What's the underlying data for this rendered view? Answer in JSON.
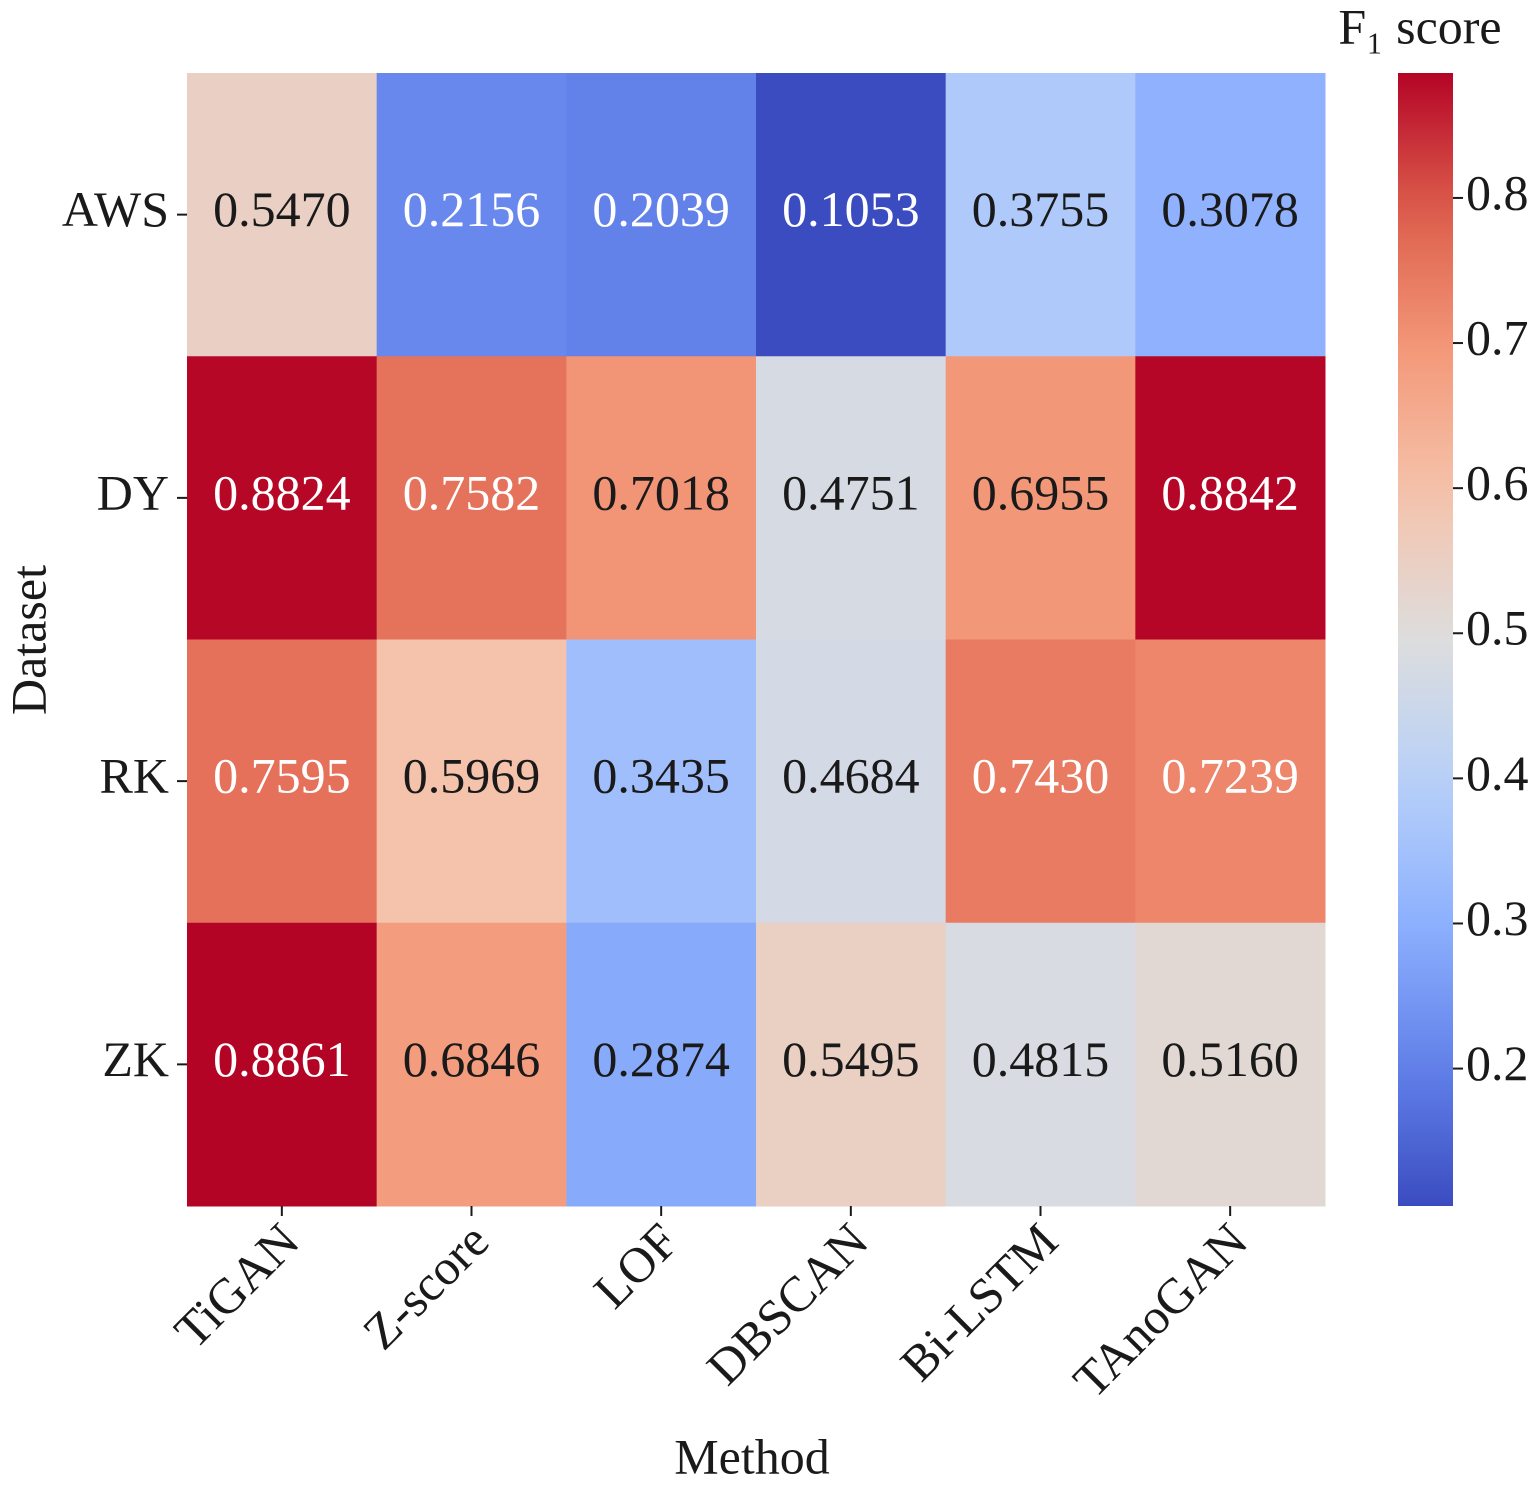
{
  "chart_data": {
    "type": "heatmap",
    "x_label": "Method",
    "y_label": "Dataset",
    "colorbar_label": "F₁ score",
    "x_categories": [
      "TiGAN",
      "Z-score",
      "LOF",
      "DBSCAN",
      "Bi-LSTM",
      "TAnoGAN"
    ],
    "y_categories": [
      "AWS",
      "DY",
      "RK",
      "ZK"
    ],
    "values": [
      [
        0.547,
        0.2156,
        0.2039,
        0.1053,
        0.3755,
        0.3078
      ],
      [
        0.8824,
        0.7582,
        0.7018,
        0.4751,
        0.6955,
        0.8842
      ],
      [
        0.7595,
        0.5969,
        0.3435,
        0.4684,
        0.743,
        0.7239
      ],
      [
        0.8861,
        0.6846,
        0.2874,
        0.5495,
        0.4815,
        0.516
      ]
    ],
    "value_labels": [
      [
        "0.5470",
        "0.2156",
        "0.2039",
        "0.1053",
        "0.3755",
        "0.3078"
      ],
      [
        "0.8824",
        "0.7582",
        "0.7018",
        "0.4751",
        "0.6955",
        "0.8842"
      ],
      [
        "0.7595",
        "0.5969",
        "0.3435",
        "0.4684",
        "0.7430",
        "0.7239"
      ],
      [
        "0.8861",
        "0.6846",
        "0.2874",
        "0.5495",
        "0.4815",
        "0.5160"
      ]
    ],
    "colormap": "coolwarm",
    "clim": [
      0.1053,
      0.8861
    ],
    "cticks": [
      0.2,
      0.3,
      0.4,
      0.5,
      0.6,
      0.7,
      0.8
    ]
  }
}
